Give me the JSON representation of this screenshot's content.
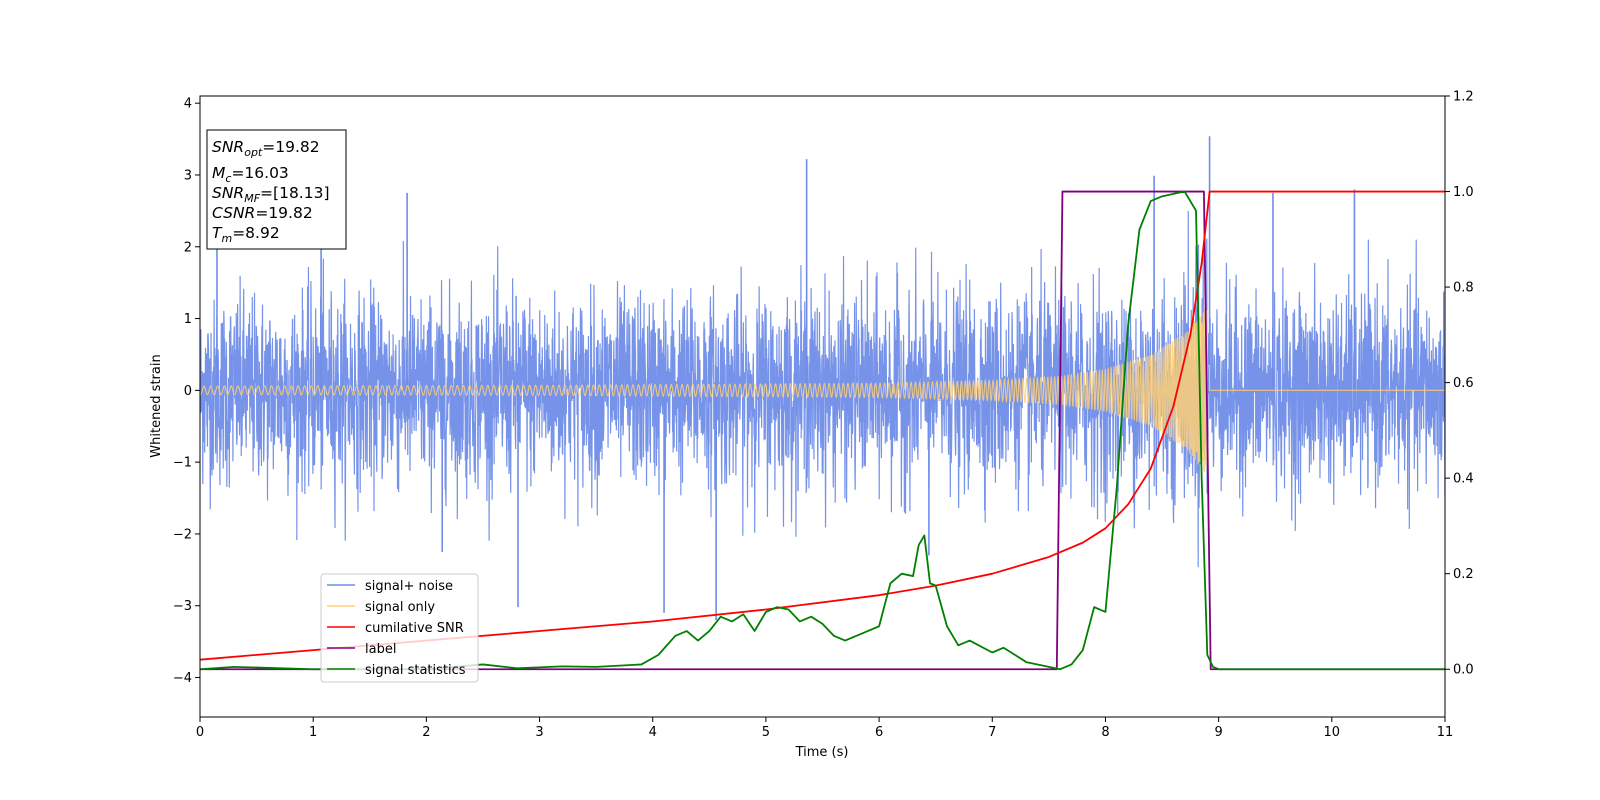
{
  "chart_data": {
    "type": "line",
    "title": "",
    "xlabel": "Time (s)",
    "ylabel": "Whitened strain",
    "xlim": [
      0,
      11
    ],
    "ylim_left": [
      -4.55,
      4.1
    ],
    "ylim_right": [
      -0.1,
      1.2
    ],
    "x_ticks": [
      0,
      1,
      2,
      3,
      4,
      5,
      6,
      7,
      8,
      9,
      10,
      11
    ],
    "y_left_ticks": [
      -4,
      -3,
      -2,
      -1,
      0,
      1,
      2,
      3,
      4
    ],
    "y_right_ticks": [
      0.0,
      0.2,
      0.4,
      0.6,
      0.8,
      1.0,
      1.2
    ],
    "grid": false,
    "legend_position": "lower-left",
    "info_box": {
      "snr_opt": {
        "sym": "SNR",
        "sub": "opt",
        "value": "=19.82"
      },
      "mc": {
        "sym": "M",
        "sub": "c",
        "value": "=16.03"
      },
      "snr_mf": {
        "sym": "SNR",
        "sub": "MF",
        "value": "=[18.13]"
      },
      "csnr": {
        "sym": "CSNR",
        "sub": "",
        "value": "=19.82"
      },
      "tm": {
        "sym": "T",
        "sub": "m",
        "value": "=8.92"
      }
    },
    "series": [
      {
        "name": "signal+ noise",
        "axis": "left",
        "color": "#6f8de8",
        "noise_sigma": 0.65,
        "peak_x": [
          0.15,
          1.07,
          1.83,
          2.14,
          2.81,
          4.1,
          4.56,
          5.36,
          6.44,
          8.43,
          8.92,
          9.48,
          10.2
        ],
        "peak_y": [
          2.5,
          2.2,
          2.75,
          -2.25,
          -3.02,
          -3.1,
          -3.2,
          3.22,
          -2.3,
          2.99,
          3.54,
          2.75,
          2.8
        ]
      },
      {
        "name": "signal only",
        "axis": "left",
        "color": "#ffcf75",
        "amplitude_points": [
          [
            0,
            0.06
          ],
          [
            3,
            0.07
          ],
          [
            6,
            0.1
          ],
          [
            7,
            0.14
          ],
          [
            7.6,
            0.2
          ],
          [
            8.0,
            0.3
          ],
          [
            8.4,
            0.5
          ],
          [
            8.7,
            0.8
          ],
          [
            8.85,
            1.1
          ],
          [
            8.92,
            1.2
          ]
        ],
        "end_x": 8.92
      },
      {
        "name": "cumilative SNR",
        "axis": "right",
        "color": "#ff0000",
        "x": [
          0,
          1,
          2,
          3,
          4,
          5,
          6,
          6.5,
          7,
          7.5,
          7.8,
          8.0,
          8.2,
          8.4,
          8.6,
          8.75,
          8.85,
          8.92,
          11
        ],
        "y": [
          0.02,
          0.04,
          0.06,
          0.08,
          0.1,
          0.125,
          0.155,
          0.175,
          0.2,
          0.235,
          0.265,
          0.295,
          0.345,
          0.42,
          0.55,
          0.7,
          0.85,
          1.0,
          1.0
        ]
      },
      {
        "name": "label",
        "axis": "right",
        "color": "#800080",
        "x": [
          0,
          7.57,
          7.62,
          8.87,
          8.93,
          11
        ],
        "y": [
          0,
          0,
          1.0,
          1.0,
          0,
          0
        ]
      },
      {
        "name": "signal statistics",
        "axis": "right",
        "color": "#008000",
        "x": [
          0,
          0.3,
          1,
          2,
          2.5,
          2.8,
          3.2,
          3.5,
          3.9,
          4.05,
          4.2,
          4.3,
          4.4,
          4.5,
          4.6,
          4.7,
          4.8,
          4.9,
          5.0,
          5.1,
          5.2,
          5.3,
          5.4,
          5.5,
          5.6,
          5.7,
          5.8,
          5.9,
          6.0,
          6.1,
          6.2,
          6.3,
          6.35,
          6.4,
          6.45,
          6.5,
          6.6,
          6.7,
          6.8,
          7.0,
          7.1,
          7.2,
          7.3,
          7.4,
          7.5,
          7.6,
          7.7,
          7.8,
          7.9,
          8.0,
          8.1,
          8.2,
          8.3,
          8.4,
          8.5,
          8.6,
          8.7,
          8.8,
          8.85,
          8.9,
          8.95,
          9.0,
          11
        ],
        "y": [
          0.0,
          0.005,
          0.0,
          0.0,
          0.01,
          0.002,
          0.006,
          0.005,
          0.01,
          0.03,
          0.07,
          0.08,
          0.06,
          0.08,
          0.11,
          0.1,
          0.115,
          0.08,
          0.12,
          0.13,
          0.125,
          0.1,
          0.11,
          0.095,
          0.07,
          0.06,
          0.07,
          0.08,
          0.09,
          0.18,
          0.2,
          0.195,
          0.26,
          0.28,
          0.18,
          0.175,
          0.09,
          0.05,
          0.06,
          0.035,
          0.045,
          0.03,
          0.015,
          0.01,
          0.005,
          0.0,
          0.01,
          0.04,
          0.13,
          0.12,
          0.38,
          0.72,
          0.92,
          0.98,
          0.99,
          0.995,
          1.0,
          0.96,
          0.4,
          0.03,
          0.005,
          0.0,
          0.0
        ]
      }
    ]
  }
}
